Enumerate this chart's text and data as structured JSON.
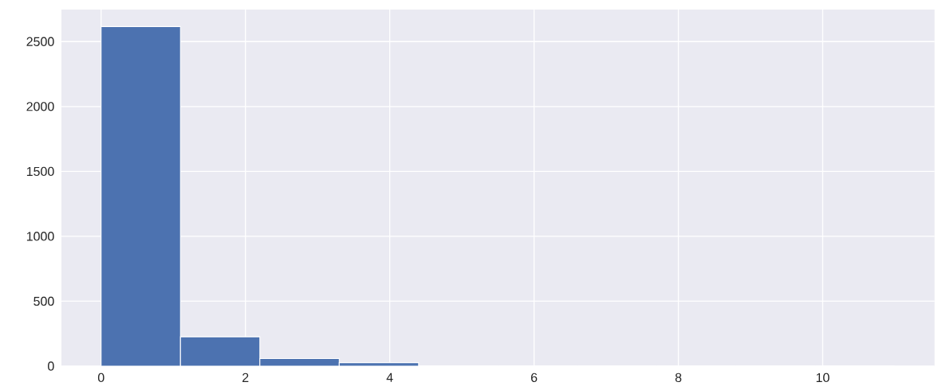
{
  "chart_data": {
    "type": "histogram",
    "bins": [
      0,
      1.1,
      2.2,
      3.3,
      4.4,
      5.5,
      6.6,
      7.7,
      8.8,
      9.9,
      11
    ],
    "values": [
      2616,
      226,
      58,
      27,
      0,
      0,
      0,
      0,
      0,
      0
    ],
    "color": "#4c72b0",
    "xlim": [
      -0.55,
      11.55
    ],
    "ylim": [
      0,
      2747
    ],
    "xticks": [
      0,
      2,
      4,
      6,
      8,
      10
    ],
    "yticks": [
      0,
      500,
      1000,
      1500,
      2000,
      2500
    ],
    "grid": true
  }
}
